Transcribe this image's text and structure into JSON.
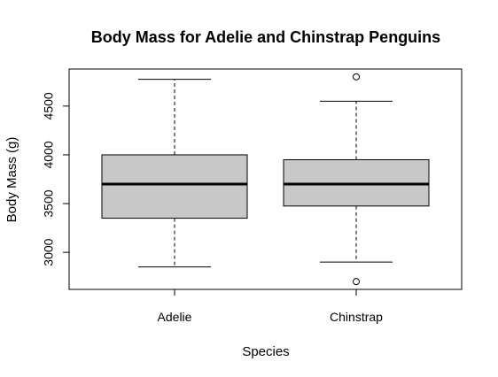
{
  "chart_data": {
    "type": "boxplot",
    "title": "Body Mass for Adelie and Chinstrap Penguins",
    "xlabel": "Species",
    "ylabel": "Body Mass (g)",
    "ylim": [
      2620,
      4880
    ],
    "yticks": [
      3000,
      3500,
      4000,
      4500
    ],
    "categories": [
      "Adelie",
      "Chinstrap"
    ],
    "series": [
      {
        "min": 2850,
        "q1": 3350,
        "median": 3700,
        "q3": 4000,
        "max": 4775,
        "outliers": []
      },
      {
        "min": 2900,
        "q1": 3475,
        "median": 3700,
        "q3": 3950,
        "max": 4550,
        "outliers": [
          4800,
          2700
        ]
      }
    ],
    "box_fill": "#c8c8c8",
    "line_color": "#000000",
    "grid": false
  }
}
